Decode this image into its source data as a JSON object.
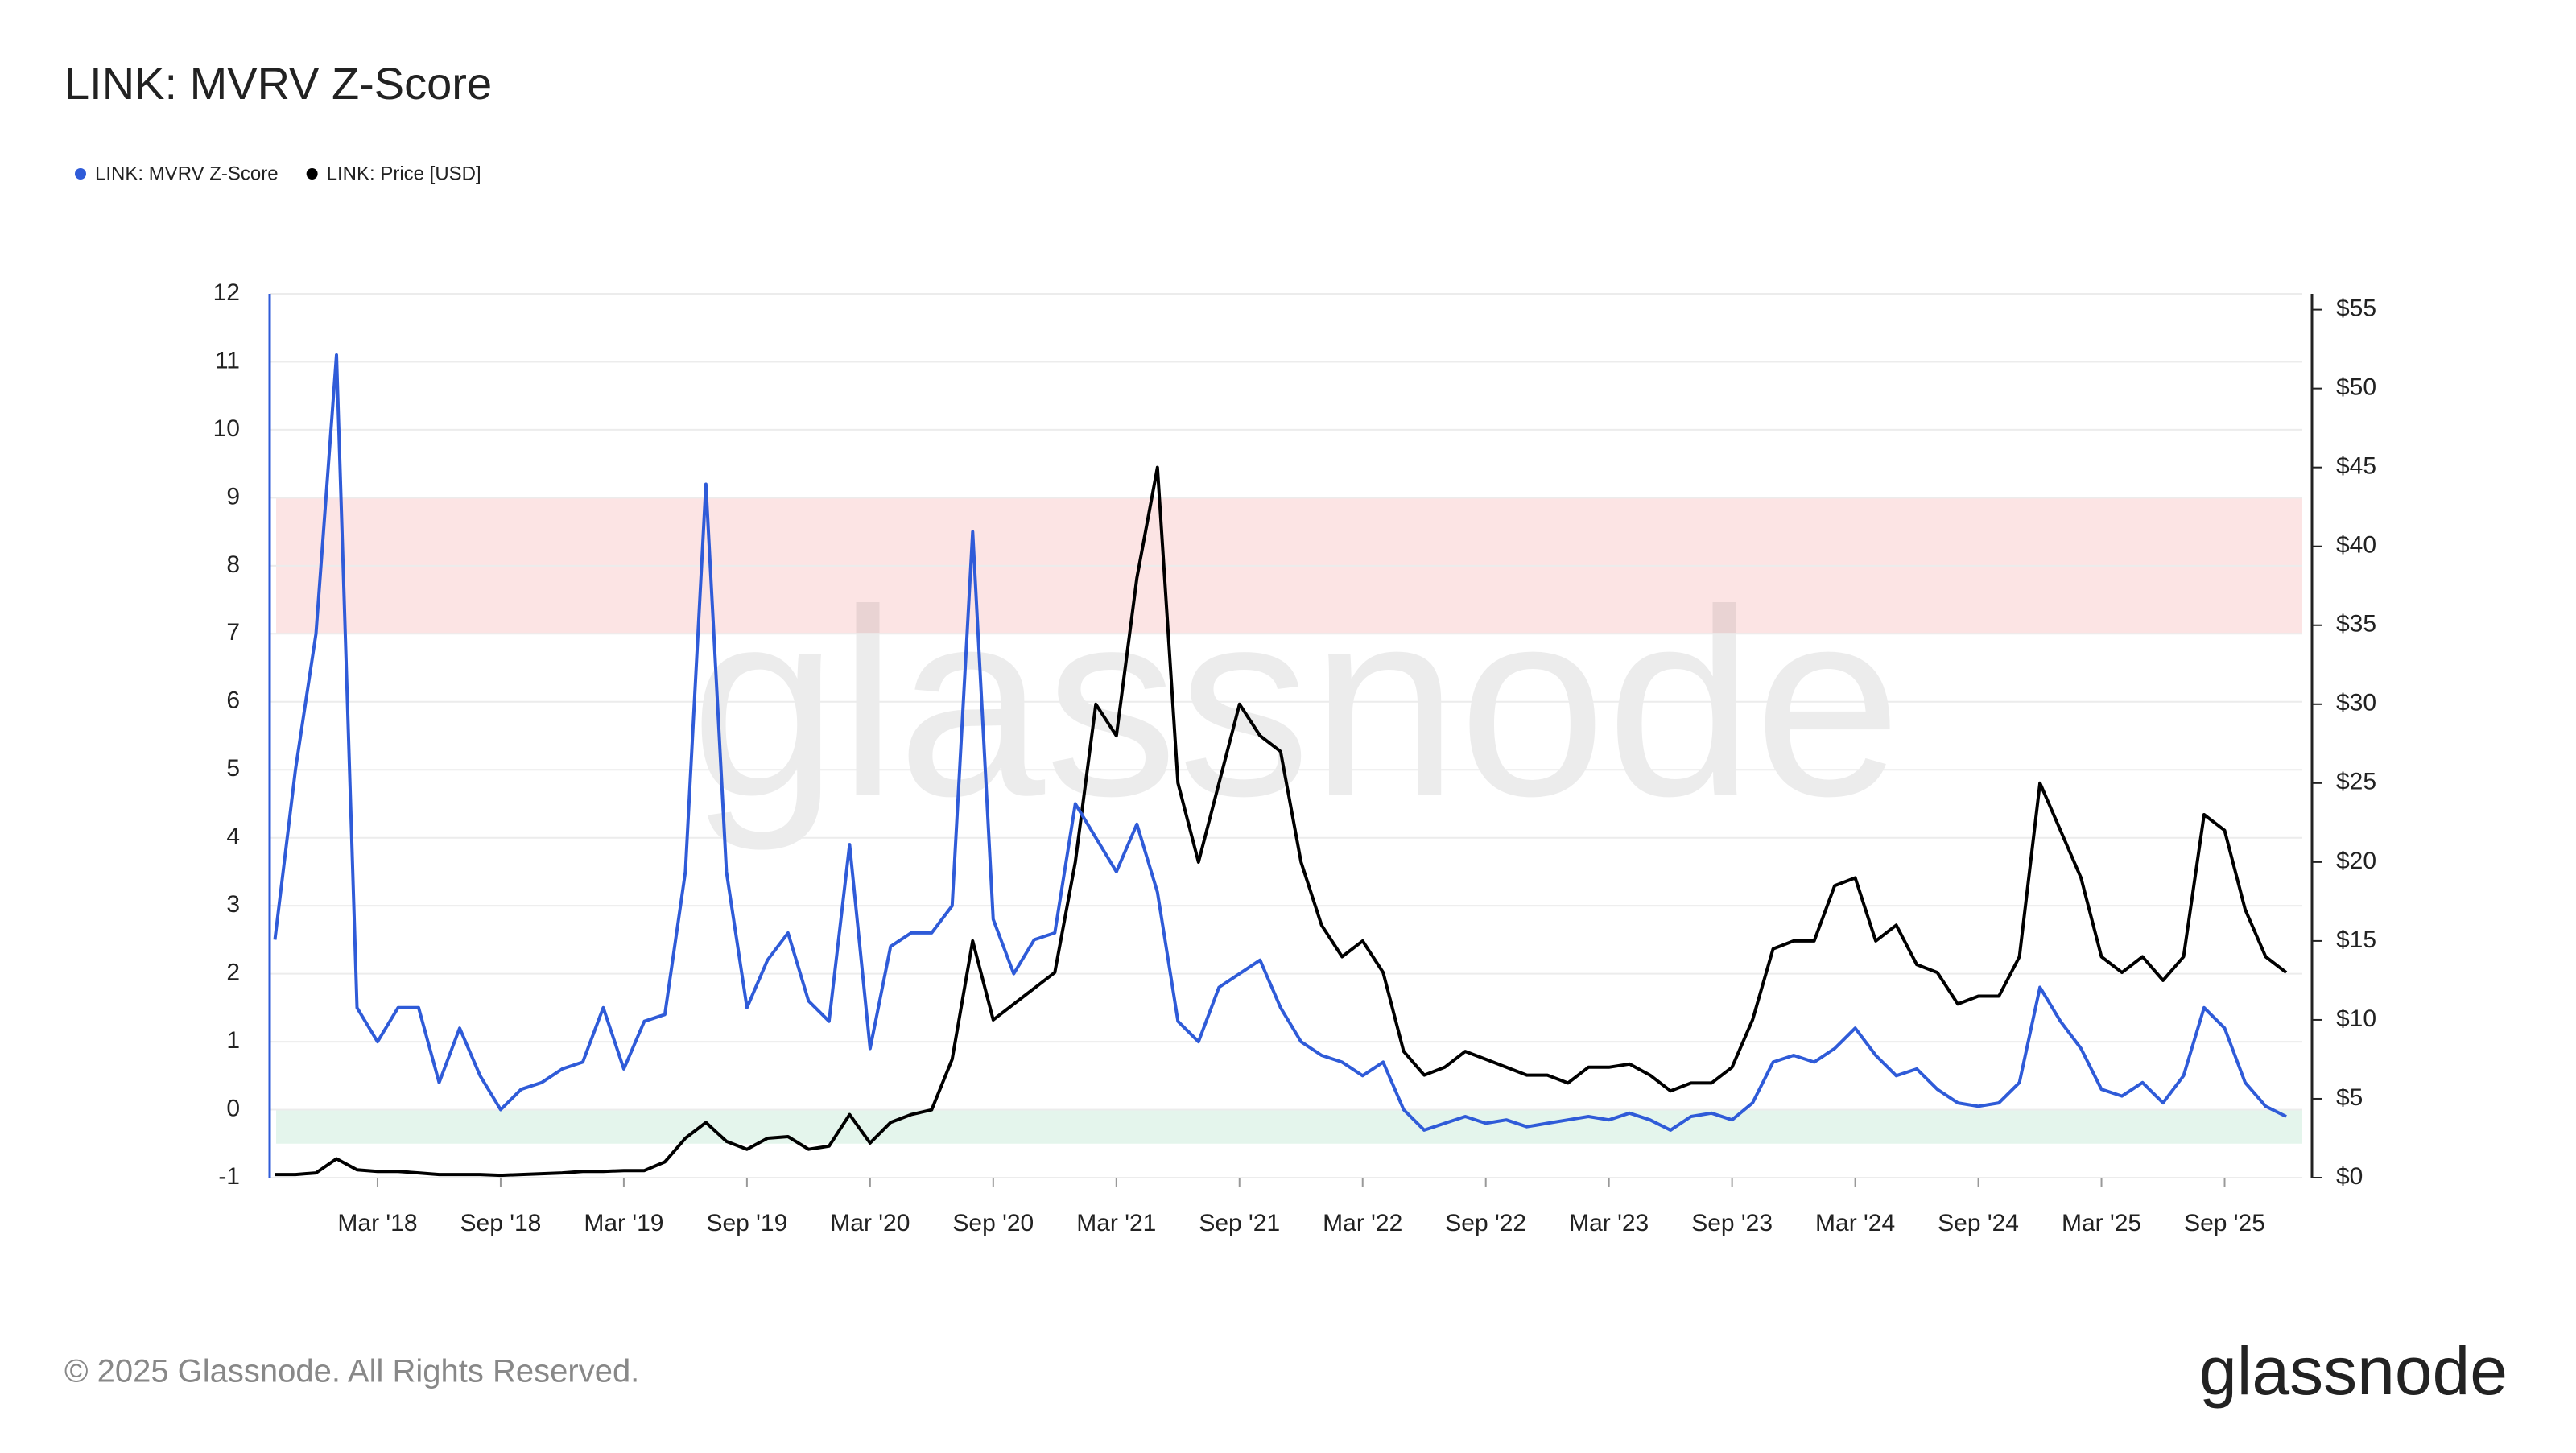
{
  "chart_data": {
    "type": "line",
    "title": "LINK: MVRV Z-Score",
    "x": [
      "2017-10",
      "2017-11",
      "2017-12",
      "2018-01",
      "2018-02",
      "2018-03",
      "2018-04",
      "2018-05",
      "2018-06",
      "2018-07",
      "2018-08",
      "2018-09",
      "2018-10",
      "2018-11",
      "2018-12",
      "2019-01",
      "2019-02",
      "2019-03",
      "2019-04",
      "2019-05",
      "2019-06",
      "2019-07",
      "2019-08",
      "2019-09",
      "2019-10",
      "2019-11",
      "2019-12",
      "2020-01",
      "2020-02",
      "2020-03",
      "2020-04",
      "2020-05",
      "2020-06",
      "2020-07",
      "2020-08",
      "2020-09",
      "2020-10",
      "2020-11",
      "2020-12",
      "2021-01",
      "2021-02",
      "2021-03",
      "2021-04",
      "2021-05",
      "2021-06",
      "2021-07",
      "2021-08",
      "2021-09",
      "2021-10",
      "2021-11",
      "2021-12",
      "2022-01",
      "2022-02",
      "2022-03",
      "2022-04",
      "2022-05",
      "2022-06",
      "2022-07",
      "2022-08",
      "2022-09",
      "2022-10",
      "2022-11",
      "2022-12",
      "2023-01",
      "2023-02",
      "2023-03",
      "2023-04",
      "2023-05",
      "2023-06",
      "2023-07",
      "2023-08",
      "2023-09",
      "2023-10",
      "2023-11",
      "2023-12",
      "2024-01",
      "2024-02",
      "2024-03",
      "2024-04",
      "2024-05",
      "2024-06",
      "2024-07",
      "2024-08",
      "2024-09",
      "2024-10",
      "2024-11",
      "2024-12",
      "2025-01",
      "2025-02",
      "2025-03",
      "2025-04",
      "2025-05",
      "2025-06",
      "2025-07",
      "2025-08",
      "2025-09",
      "2025-10",
      "2025-11",
      "2025-12"
    ],
    "series": [
      {
        "name": "LINK: MVRV Z-Score",
        "color": "#2f5bd8",
        "axis": "y",
        "values": [
          2.5,
          5,
          7,
          11.1,
          1.5,
          1.0,
          1.5,
          1.5,
          0.4,
          1.2,
          0.5,
          0.0,
          0.3,
          0.4,
          0.6,
          0.7,
          1.5,
          0.6,
          1.3,
          1.4,
          3.5,
          9.2,
          3.5,
          1.5,
          2.2,
          2.6,
          1.6,
          1.3,
          3.9,
          0.9,
          2.4,
          2.6,
          2.6,
          3.0,
          8.5,
          2.8,
          2.0,
          2.5,
          2.6,
          4.5,
          4.0,
          3.5,
          4.2,
          3.2,
          1.3,
          1.0,
          1.8,
          2.0,
          2.2,
          1.5,
          1.0,
          0.8,
          0.7,
          0.5,
          0.7,
          0.0,
          -0.3,
          -0.2,
          -0.1,
          -0.2,
          -0.15,
          -0.25,
          -0.2,
          -0.15,
          -0.1,
          -0.15,
          -0.05,
          -0.15,
          -0.3,
          -0.1,
          -0.05,
          -0.15,
          0.1,
          0.7,
          0.8,
          0.7,
          0.9,
          1.2,
          0.8,
          0.5,
          0.6,
          0.3,
          0.1,
          0.05,
          0.1,
          0.4,
          1.8,
          1.3,
          0.9,
          0.3,
          0.2,
          0.4,
          0.1,
          0.5,
          1.5,
          1.2,
          0.4,
          0.05,
          -0.1
        ]
      },
      {
        "name": "LINK: Price [USD]",
        "color": "#000000",
        "axis": "y2",
        "values": [
          0.2,
          0.2,
          0.3,
          1.2,
          0.5,
          0.4,
          0.4,
          0.3,
          0.2,
          0.2,
          0.2,
          0.15,
          0.2,
          0.25,
          0.3,
          0.4,
          0.4,
          0.45,
          0.45,
          1.0,
          2.5,
          3.5,
          2.3,
          1.8,
          2.5,
          2.6,
          1.8,
          2.0,
          4.0,
          2.2,
          3.5,
          4.0,
          4.3,
          7.5,
          15,
          10,
          11,
          12,
          13,
          20,
          30,
          28,
          38,
          45,
          25,
          20,
          25,
          30,
          28,
          27,
          20,
          16,
          14,
          15,
          13,
          8,
          6.5,
          7,
          8,
          7.5,
          7,
          6.5,
          6.5,
          6,
          7,
          7,
          7.2,
          6.5,
          5.5,
          6,
          6,
          7,
          10,
          14.5,
          15,
          15,
          18.5,
          19,
          15,
          16,
          13.5,
          13,
          11,
          11.5,
          11.5,
          14,
          25,
          22,
          19,
          14,
          13,
          14,
          12.5,
          14,
          23,
          22,
          17,
          14,
          13
        ]
      }
    ],
    "xticks": [
      {
        "value": "2018-03",
        "label": "Mar '18"
      },
      {
        "value": "2018-09",
        "label": "Sep '18"
      },
      {
        "value": "2019-03",
        "label": "Mar '19"
      },
      {
        "value": "2019-09",
        "label": "Sep '19"
      },
      {
        "value": "2020-03",
        "label": "Mar '20"
      },
      {
        "value": "2020-09",
        "label": "Sep '20"
      },
      {
        "value": "2021-03",
        "label": "Mar '21"
      },
      {
        "value": "2021-09",
        "label": "Sep '21"
      },
      {
        "value": "2022-03",
        "label": "Mar '22"
      },
      {
        "value": "2022-09",
        "label": "Sep '22"
      },
      {
        "value": "2023-03",
        "label": "Mar '23"
      },
      {
        "value": "2023-09",
        "label": "Sep '23"
      },
      {
        "value": "2024-03",
        "label": "Mar '24"
      },
      {
        "value": "2024-09",
        "label": "Sep '24"
      },
      {
        "value": "2025-03",
        "label": "Mar '25"
      },
      {
        "value": "2025-09",
        "label": "Sep '25"
      }
    ],
    "ylim": [
      -1,
      12
    ],
    "yticks": [
      -1,
      0,
      1,
      2,
      3,
      4,
      5,
      6,
      7,
      8,
      9,
      10,
      11,
      12
    ],
    "y2lim": [
      0,
      56
    ],
    "y2ticks": [
      {
        "value": 0,
        "label": "$0"
      },
      {
        "value": 5,
        "label": "$5"
      },
      {
        "value": 10,
        "label": "$10"
      },
      {
        "value": 15,
        "label": "$15"
      },
      {
        "value": 20,
        "label": "$20"
      },
      {
        "value": 25,
        "label": "$25"
      },
      {
        "value": 30,
        "label": "$30"
      },
      {
        "value": 35,
        "label": "$35"
      },
      {
        "value": 40,
        "label": "$40"
      },
      {
        "value": 45,
        "label": "$45"
      },
      {
        "value": 50,
        "label": "$50"
      },
      {
        "value": 55,
        "label": "$55"
      }
    ],
    "bands": [
      {
        "from": 7,
        "to": 9,
        "color": "#fce4e4"
      },
      {
        "from": -0.5,
        "to": 0,
        "color": "#e4f5ec"
      }
    ],
    "grid": true,
    "legend": "top-left",
    "watermark": "glassnode",
    "footer": "© 2025 Glassnode. All Rights Reserved.",
    "logo": "glassnode"
  }
}
